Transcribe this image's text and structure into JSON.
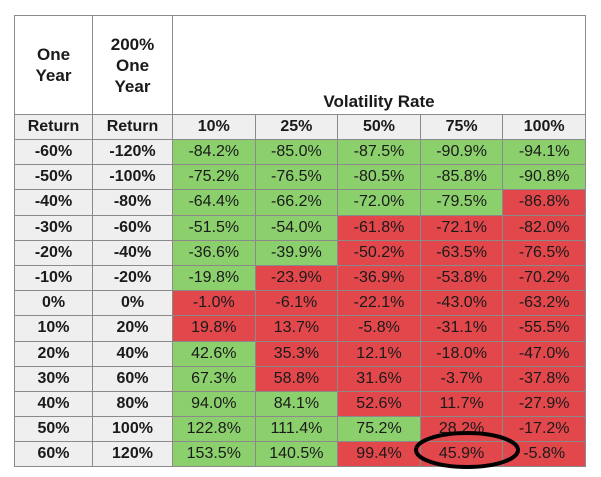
{
  "table": {
    "headers": [
      "One\nYear",
      "200%\nOne\nYear",
      "Volatility Rate"
    ],
    "subheaders": [
      "Return",
      "Return",
      "10%",
      "25%",
      "50%",
      "75%",
      "100%"
    ],
    "rows": [
      [
        "-60%",
        "-120%",
        "-84.2%",
        "-85.0%",
        "-87.5%",
        "-90.9%",
        "-94.1%"
      ],
      [
        "-50%",
        "-100%",
        "-75.2%",
        "-76.5%",
        "-80.5%",
        "-85.8%",
        "-90.8%"
      ],
      [
        "-40%",
        "-80%",
        "-64.4%",
        "-66.2%",
        "-72.0%",
        "-79.5%",
        "-86.8%"
      ],
      [
        "-30%",
        "-60%",
        "-51.5%",
        "-54.0%",
        "-61.8%",
        "-72.1%",
        "-82.0%"
      ],
      [
        "-20%",
        "-40%",
        "-36.6%",
        "-39.9%",
        "-50.2%",
        "-63.5%",
        "-76.5%"
      ],
      [
        "-10%",
        "-20%",
        "-19.8%",
        "-23.9%",
        "-36.9%",
        "-53.8%",
        "-70.2%"
      ],
      [
        "0%",
        "0%",
        "-1.0%",
        "-6.1%",
        "-22.1%",
        "-43.0%",
        "-63.2%"
      ],
      [
        "10%",
        "20%",
        "19.8%",
        "13.7%",
        "-5.8%",
        "-31.1%",
        "-55.5%"
      ],
      [
        "20%",
        "40%",
        "42.6%",
        "35.3%",
        "12.1%",
        "-18.0%",
        "-47.0%"
      ],
      [
        "30%",
        "60%",
        "67.3%",
        "58.8%",
        "31.6%",
        "-3.7%",
        "-37.8%"
      ],
      [
        "40%",
        "80%",
        "94.0%",
        "84.1%",
        "52.6%",
        "11.7%",
        "-27.9%"
      ],
      [
        "50%",
        "100%",
        "122.8%",
        "111.4%",
        "75.2%",
        "28.2%",
        "-17.2%"
      ],
      [
        "60%",
        "120%",
        "153.5%",
        "140.5%",
        "99.4%",
        "45.9%",
        "-5.8%"
      ]
    ],
    "cell_colors": [
      [
        "#8bd06c",
        "#8bd06c",
        "#8bd06c",
        "#8bd06c",
        "#8bd06c"
      ],
      [
        "#8bd06c",
        "#8bd06c",
        "#8bd06c",
        "#8bd06c",
        "#8bd06c"
      ],
      [
        "#8bd06c",
        "#8bd06c",
        "#8bd06c",
        "#8bd06c",
        "#e2474b"
      ],
      [
        "#8bd06c",
        "#8bd06c",
        "#e2474b",
        "#e2474b",
        "#e2474b"
      ],
      [
        "#8bd06c",
        "#8bd06c",
        "#e2474b",
        "#e2474b",
        "#e2474b"
      ],
      [
        "#8bd06c",
        "#e2474b",
        "#e2474b",
        "#e2474b",
        "#e2474b"
      ],
      [
        "#e2474b",
        "#e2474b",
        "#e2474b",
        "#e2474b",
        "#e2474b"
      ],
      [
        "#e2474b",
        "#e2474b",
        "#e2474b",
        "#e2474b",
        "#e2474b"
      ],
      [
        "#8bd06c",
        "#e2474b",
        "#e2474b",
        "#e2474b",
        "#e2474b"
      ],
      [
        "#8bd06c",
        "#e2474b",
        "#e2474b",
        "#e2474b",
        "#e2474b"
      ],
      [
        "#8bd06c",
        "#8bd06c",
        "#e2474b",
        "#e2474b",
        "#e2474b"
      ],
      [
        "#8bd06c",
        "#8bd06c",
        "#8bd06c",
        "#e2474b",
        "#e2474b"
      ],
      [
        "#8bd06c",
        "#8bd06c",
        "#e2474b",
        "#e2474b",
        "#e2474b"
      ]
    ]
  }
}
